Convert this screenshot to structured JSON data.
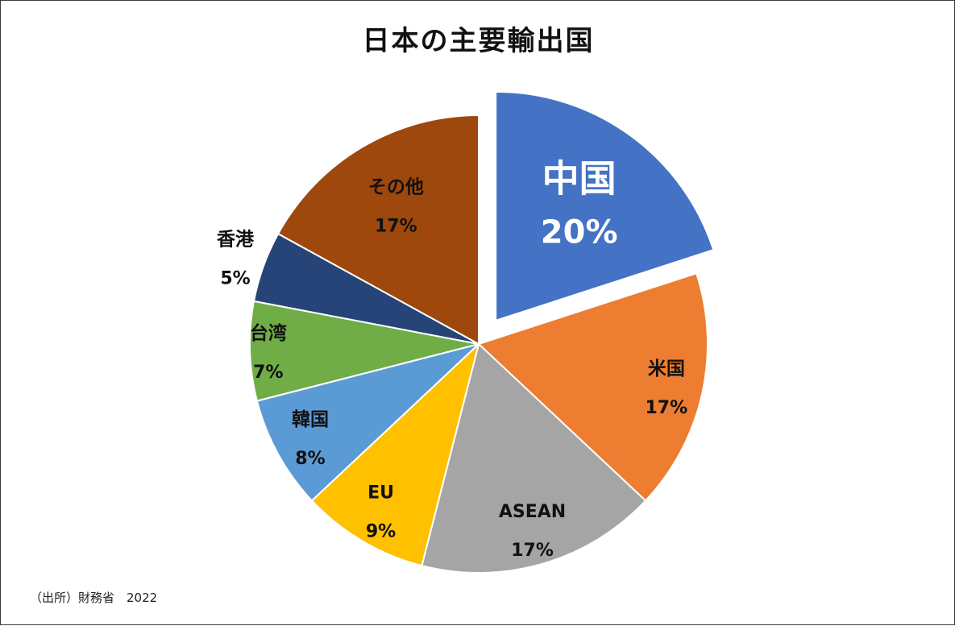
{
  "chart_data": {
    "type": "pie",
    "title": "日本の主要輸出国",
    "source": "（出所）財務省　2022",
    "exploded": "中国",
    "slices": [
      {
        "label": "中国",
        "value": 20,
        "display": "20%",
        "color": "#4472C4",
        "text_color": "#ffffff"
      },
      {
        "label": "米国",
        "value": 17,
        "display": "17%",
        "color": "#ED7D31",
        "text_color": "#111111"
      },
      {
        "label": "ASEAN",
        "value": 17,
        "display": "17%",
        "color": "#A5A5A5",
        "text_color": "#111111"
      },
      {
        "label": "EU",
        "value": 9,
        "display": "9%",
        "color": "#FFC000",
        "text_color": "#111111"
      },
      {
        "label": "韓国",
        "value": 8,
        "display": "8%",
        "color": "#5B9BD5",
        "text_color": "#111111"
      },
      {
        "label": "台湾",
        "value": 7,
        "display": "7%",
        "color": "#70AD47",
        "text_color": "#111111"
      },
      {
        "label": "香港",
        "value": 5,
        "display": "5%",
        "color": "#264478",
        "text_color": "#111111"
      },
      {
        "label": "その他",
        "value": 17,
        "display": "17%",
        "color": "#9E480E",
        "text_color": "#111111"
      }
    ]
  }
}
